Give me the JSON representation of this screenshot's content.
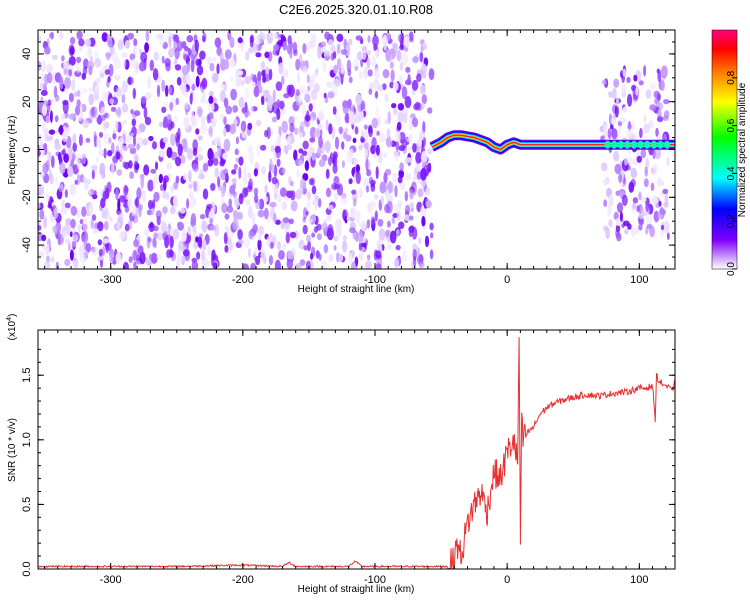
{
  "title": "C2E6.2025.320.01.10.R08",
  "chart_data": [
    {
      "type": "heatmap",
      "xlabel": "Height of straight line (km)",
      "ylabel": "Frequency (Hz)",
      "xlim": [
        -355,
        127
      ],
      "ylim": [
        -50,
        50
      ],
      "xticks": [
        -300,
        -200,
        -100,
        0,
        100
      ],
      "yticks": [
        -40,
        -20,
        0,
        20,
        40
      ],
      "colorbar": {
        "label": "Normalized spectral amplitude",
        "range": [
          0,
          1
        ],
        "ticks": [
          "0.0",
          "0.2",
          "0.4",
          "0.6",
          "0.8"
        ],
        "colors": [
          "#ffffff",
          "#8000ff",
          "#0000ff",
          "#00ffff",
          "#00ff00",
          "#ffff00",
          "#ff8000",
          "#ff0000",
          "#ff0080"
        ]
      },
      "noise_regions": [
        {
          "x": [
            -355,
            -57
          ],
          "freq": [
            -50,
            48
          ]
        },
        {
          "x": [
            72,
            122
          ],
          "freq": [
            -37,
            33
          ]
        }
      ],
      "ridge": {
        "x": [
          -57,
          -50,
          -45,
          -40,
          -35,
          -30,
          -25,
          -20,
          -15,
          -10,
          -5,
          0,
          5,
          10,
          20,
          40,
          60,
          80,
          100,
          127
        ],
        "freq": [
          1,
          3,
          5,
          6,
          6,
          5.5,
          5,
          4,
          3,
          1,
          0,
          2,
          3,
          2,
          2,
          2,
          2,
          2,
          2,
          2
        ]
      }
    },
    {
      "type": "line",
      "xlabel": "Height of straight line (km)",
      "ylabel": "SNR (10 * v/v)",
      "multiplier": "(x10",
      "multiplier_exp": "4",
      "multiplier_close": ")",
      "xlim": [
        -355,
        127
      ],
      "ylim": [
        0,
        1.85
      ],
      "xticks": [
        -300,
        -200,
        -100,
        0,
        100
      ],
      "yticks": [
        "0.0",
        "0.5",
        "1.0",
        "1.5"
      ],
      "series": [
        {
          "color": "#e83030",
          "x": [
            -355,
            -300,
            -250,
            -200,
            -170,
            -165,
            -160,
            -120,
            -115,
            -110,
            -80,
            -60,
            -45,
            -40,
            -38,
            -35,
            -30,
            -25,
            -20,
            -15,
            -10,
            -5,
            0,
            5,
            8,
            9,
            10,
            11,
            12,
            15,
            20,
            25,
            30,
            35,
            40,
            50,
            60,
            70,
            80,
            90,
            100,
            105,
            110,
            112,
            113,
            115,
            120,
            125,
            127
          ],
          "y": [
            0.02,
            0.02,
            0.02,
            0.03,
            0.02,
            0.05,
            0.02,
            0.02,
            0.06,
            0.02,
            0.02,
            0.02,
            0.02,
            0.06,
            0.2,
            0.1,
            0.35,
            0.5,
            0.6,
            0.45,
            0.75,
            0.7,
            0.9,
            1.0,
            0.8,
            1.85,
            0.2,
            1.1,
            1.0,
            1.05,
            1.1,
            1.2,
            1.25,
            1.28,
            1.3,
            1.33,
            1.35,
            1.34,
            1.36,
            1.37,
            1.4,
            1.4,
            1.42,
            1.15,
            1.5,
            1.45,
            1.42,
            1.38,
            1.45
          ]
        }
      ]
    }
  ]
}
